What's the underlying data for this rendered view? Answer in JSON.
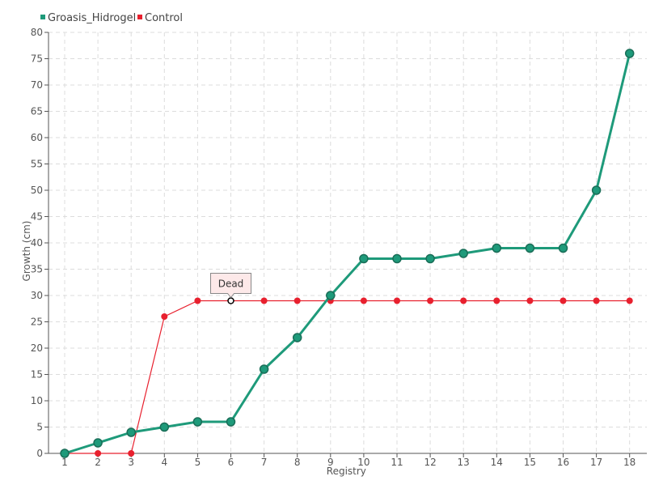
{
  "chart_data": {
    "type": "line",
    "title": "",
    "xlabel": "Registry",
    "ylabel": "Growth (cm)",
    "categories": [
      "1",
      "2",
      "3",
      "4",
      "5",
      "6",
      "7",
      "8",
      "9",
      "10",
      "11",
      "12",
      "13",
      "14",
      "15",
      "16",
      "17",
      "18"
    ],
    "ylim": [
      0,
      80
    ],
    "yticks": [
      "0",
      "5",
      "10",
      "15",
      "20",
      "25",
      "30",
      "35",
      "40",
      "45",
      "50",
      "55",
      "60",
      "65",
      "70",
      "75",
      "80"
    ],
    "grid": true,
    "legend_position": "top-left",
    "series": [
      {
        "name": "Groasis_Hidrogel",
        "color": "#1e9a7a",
        "values": [
          0,
          2,
          4,
          5,
          6,
          6,
          16,
          22,
          30,
          37,
          37,
          37,
          38,
          39,
          39,
          39,
          50,
          76
        ]
      },
      {
        "name": "Control",
        "color": "#e8202e",
        "values": [
          0,
          0,
          0,
          26,
          29,
          29,
          29,
          29,
          29,
          29,
          29,
          29,
          29,
          29,
          29,
          29,
          29,
          29
        ]
      }
    ],
    "annotations": [
      {
        "text": "Dead",
        "series": "Control",
        "category": "6",
        "value": 29
      }
    ]
  }
}
